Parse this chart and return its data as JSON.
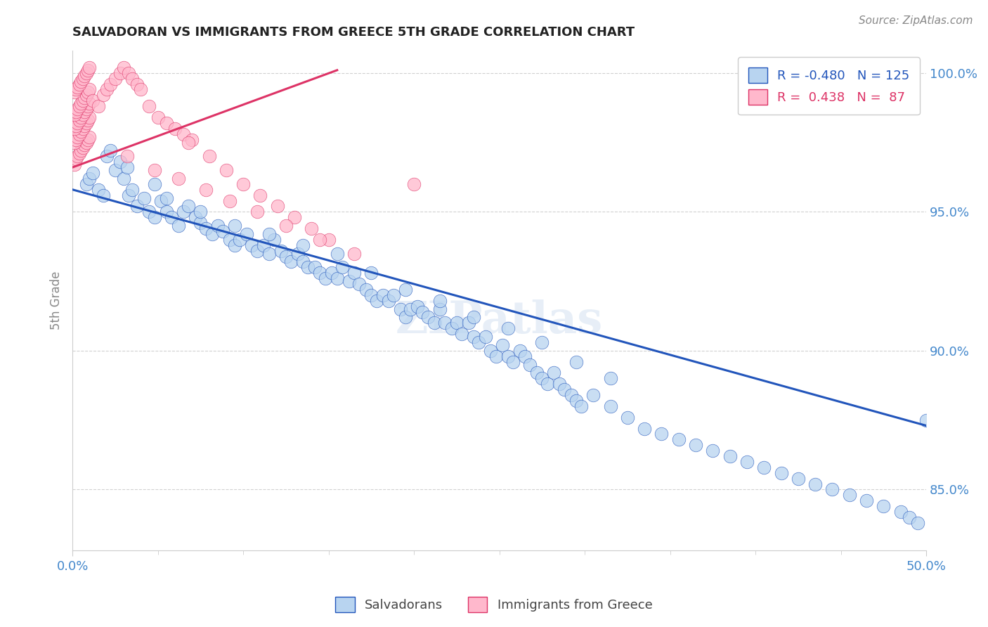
{
  "title": "SALVADORAN VS IMMIGRANTS FROM GREECE 5TH GRADE CORRELATION CHART",
  "source": "Source: ZipAtlas.com",
  "ylabel": "5th Grade",
  "legend_blue_R": "-0.480",
  "legend_blue_N": "125",
  "legend_pink_R": "0.438",
  "legend_pink_N": "87",
  "blue_color": "#b8d4f0",
  "blue_line_color": "#2255bb",
  "pink_color": "#ffb8cc",
  "pink_line_color": "#dd3366",
  "watermark": "ZIPatlas",
  "xlim": [
    0.0,
    0.5
  ],
  "ylim": [
    0.828,
    1.008
  ],
  "yticks": [
    0.85,
    0.9,
    0.95,
    1.0
  ],
  "xticks": [
    0.0,
    0.5
  ],
  "blue_trendline_x": [
    0.0,
    0.5
  ],
  "blue_trendline_y": [
    0.958,
    0.873
  ],
  "pink_trendline_x": [
    0.0,
    0.155
  ],
  "pink_trendline_y": [
    0.966,
    1.001
  ],
  "blue_scatter_x": [
    0.008,
    0.01,
    0.012,
    0.015,
    0.018,
    0.02,
    0.022,
    0.025,
    0.028,
    0.03,
    0.033,
    0.035,
    0.038,
    0.042,
    0.045,
    0.048,
    0.052,
    0.055,
    0.058,
    0.062,
    0.065,
    0.068,
    0.072,
    0.075,
    0.078,
    0.082,
    0.085,
    0.088,
    0.092,
    0.095,
    0.098,
    0.102,
    0.105,
    0.108,
    0.112,
    0.115,
    0.118,
    0.122,
    0.125,
    0.128,
    0.132,
    0.135,
    0.138,
    0.142,
    0.145,
    0.148,
    0.152,
    0.155,
    0.158,
    0.162,
    0.165,
    0.168,
    0.172,
    0.175,
    0.178,
    0.182,
    0.185,
    0.188,
    0.192,
    0.195,
    0.198,
    0.202,
    0.205,
    0.208,
    0.212,
    0.215,
    0.218,
    0.222,
    0.225,
    0.228,
    0.232,
    0.235,
    0.238,
    0.242,
    0.245,
    0.248,
    0.252,
    0.255,
    0.258,
    0.262,
    0.265,
    0.268,
    0.272,
    0.275,
    0.278,
    0.282,
    0.285,
    0.288,
    0.292,
    0.295,
    0.298,
    0.305,
    0.315,
    0.325,
    0.335,
    0.345,
    0.355,
    0.365,
    0.375,
    0.385,
    0.395,
    0.405,
    0.415,
    0.425,
    0.435,
    0.445,
    0.455,
    0.465,
    0.475,
    0.485,
    0.49,
    0.495,
    0.5,
    0.032,
    0.055,
    0.048,
    0.075,
    0.095,
    0.115,
    0.135,
    0.155,
    0.175,
    0.195,
    0.215,
    0.235,
    0.255,
    0.275,
    0.295,
    0.315
  ],
  "blue_scatter_y": [
    0.96,
    0.962,
    0.964,
    0.958,
    0.956,
    0.97,
    0.972,
    0.965,
    0.968,
    0.962,
    0.956,
    0.958,
    0.952,
    0.955,
    0.95,
    0.948,
    0.954,
    0.95,
    0.948,
    0.945,
    0.95,
    0.952,
    0.948,
    0.946,
    0.944,
    0.942,
    0.945,
    0.943,
    0.94,
    0.938,
    0.94,
    0.942,
    0.938,
    0.936,
    0.938,
    0.935,
    0.94,
    0.936,
    0.934,
    0.932,
    0.935,
    0.932,
    0.93,
    0.93,
    0.928,
    0.926,
    0.928,
    0.926,
    0.93,
    0.925,
    0.928,
    0.924,
    0.922,
    0.92,
    0.918,
    0.92,
    0.918,
    0.92,
    0.915,
    0.912,
    0.915,
    0.916,
    0.914,
    0.912,
    0.91,
    0.915,
    0.91,
    0.908,
    0.91,
    0.906,
    0.91,
    0.905,
    0.903,
    0.905,
    0.9,
    0.898,
    0.902,
    0.898,
    0.896,
    0.9,
    0.898,
    0.895,
    0.892,
    0.89,
    0.888,
    0.892,
    0.888,
    0.886,
    0.884,
    0.882,
    0.88,
    0.884,
    0.88,
    0.876,
    0.872,
    0.87,
    0.868,
    0.866,
    0.864,
    0.862,
    0.86,
    0.858,
    0.856,
    0.854,
    0.852,
    0.85,
    0.848,
    0.846,
    0.844,
    0.842,
    0.84,
    0.838,
    0.875,
    0.966,
    0.955,
    0.96,
    0.95,
    0.945,
    0.942,
    0.938,
    0.935,
    0.928,
    0.922,
    0.918,
    0.912,
    0.908,
    0.903,
    0.896,
    0.89
  ],
  "pink_scatter_x": [
    0.001,
    0.002,
    0.003,
    0.004,
    0.005,
    0.006,
    0.007,
    0.008,
    0.009,
    0.01,
    0.001,
    0.002,
    0.003,
    0.004,
    0.005,
    0.006,
    0.007,
    0.008,
    0.009,
    0.01,
    0.001,
    0.002,
    0.003,
    0.004,
    0.005,
    0.006,
    0.007,
    0.008,
    0.009,
    0.01,
    0.001,
    0.002,
    0.003,
    0.004,
    0.005,
    0.006,
    0.007,
    0.008,
    0.009,
    0.01,
    0.001,
    0.002,
    0.003,
    0.004,
    0.005,
    0.006,
    0.007,
    0.008,
    0.009,
    0.01,
    0.012,
    0.015,
    0.018,
    0.02,
    0.022,
    0.025,
    0.028,
    0.03,
    0.033,
    0.035,
    0.038,
    0.04,
    0.045,
    0.05,
    0.055,
    0.06,
    0.065,
    0.07,
    0.08,
    0.09,
    0.1,
    0.11,
    0.12,
    0.13,
    0.14,
    0.15,
    0.032,
    0.048,
    0.062,
    0.078,
    0.092,
    0.108,
    0.125,
    0.145,
    0.165,
    0.2,
    0.068
  ],
  "pink_scatter_y": [
    0.967,
    0.969,
    0.97,
    0.971,
    0.972,
    0.973,
    0.974,
    0.975,
    0.976,
    0.977,
    0.975,
    0.976,
    0.977,
    0.978,
    0.979,
    0.98,
    0.981,
    0.982,
    0.983,
    0.984,
    0.98,
    0.981,
    0.982,
    0.983,
    0.984,
    0.985,
    0.986,
    0.987,
    0.988,
    0.989,
    0.985,
    0.986,
    0.987,
    0.988,
    0.989,
    0.99,
    0.991,
    0.992,
    0.993,
    0.994,
    0.993,
    0.994,
    0.995,
    0.996,
    0.997,
    0.998,
    0.999,
    1.0,
    1.001,
    1.002,
    0.99,
    0.988,
    0.992,
    0.994,
    0.996,
    0.998,
    1.0,
    1.002,
    1.0,
    0.998,
    0.996,
    0.994,
    0.988,
    0.984,
    0.982,
    0.98,
    0.978,
    0.976,
    0.97,
    0.965,
    0.96,
    0.956,
    0.952,
    0.948,
    0.944,
    0.94,
    0.97,
    0.965,
    0.962,
    0.958,
    0.954,
    0.95,
    0.945,
    0.94,
    0.935,
    0.96,
    0.975
  ]
}
